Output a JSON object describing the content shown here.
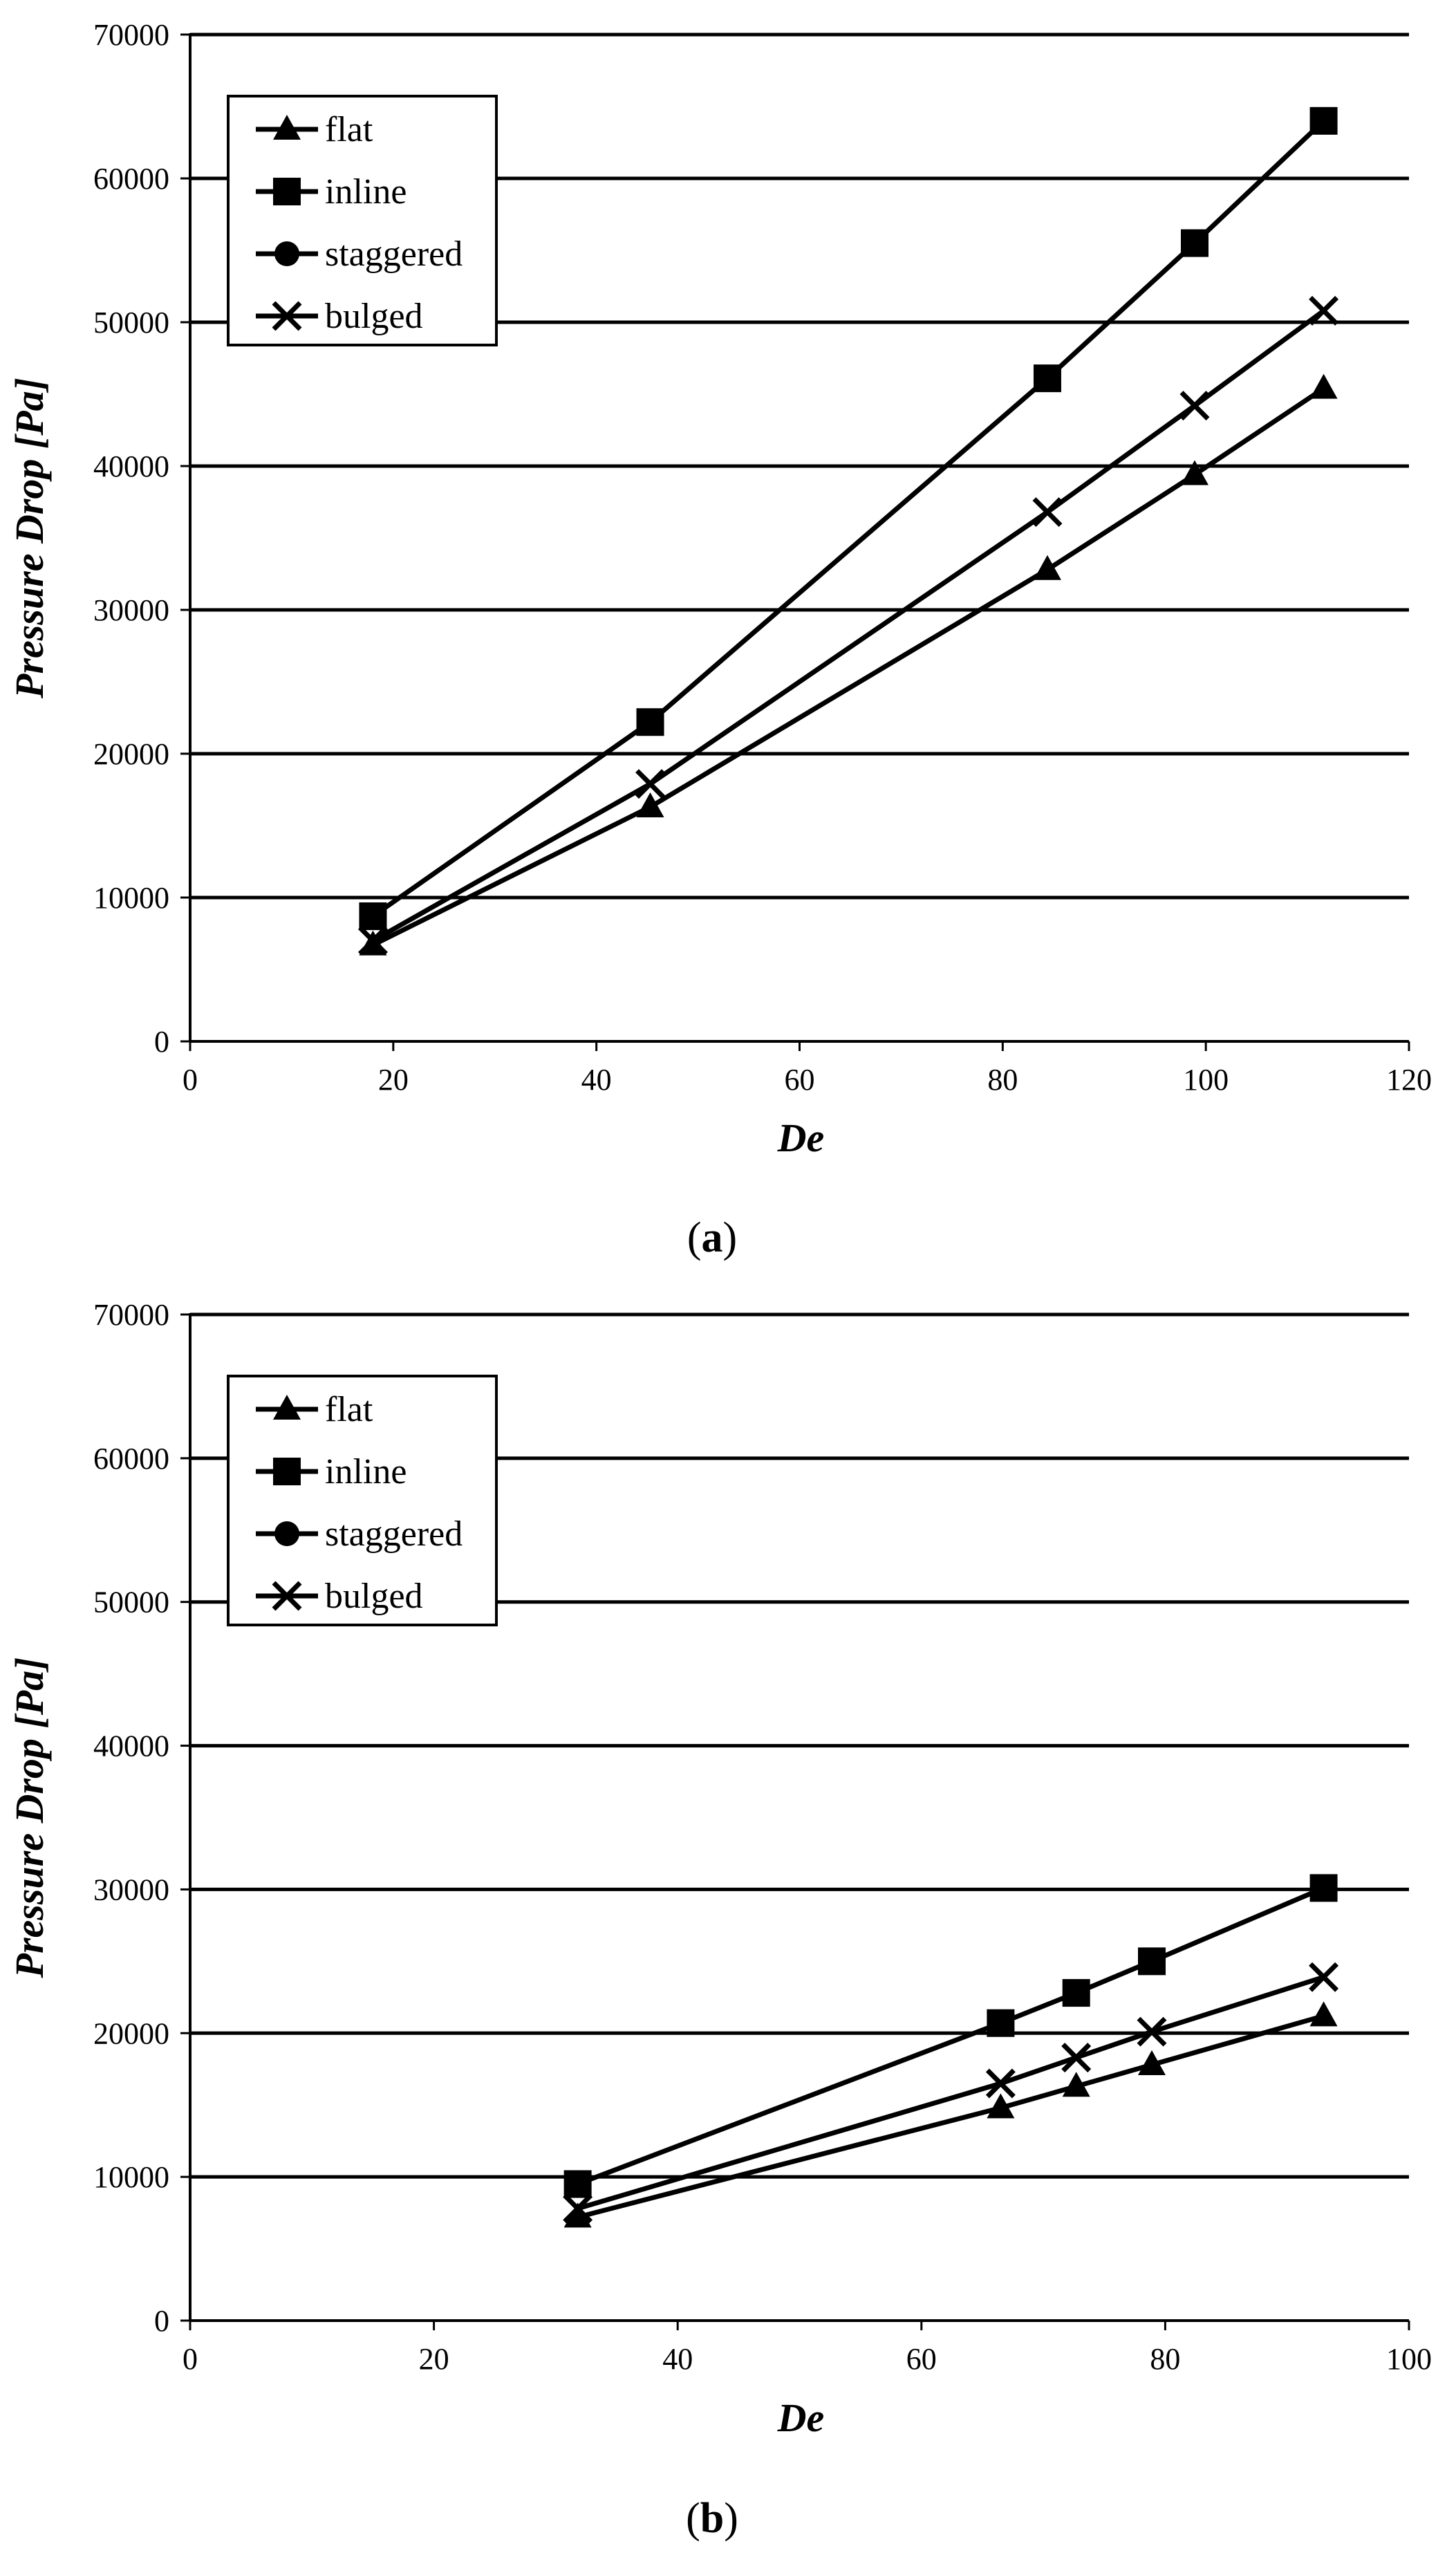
{
  "chart_data": [
    {
      "type": "line",
      "panel_label": "a",
      "xlabel": "De",
      "ylabel": "Pressure Drop [Pa]",
      "xlim": [
        0,
        120
      ],
      "ylim": [
        0,
        70000
      ],
      "x_ticks": [
        "0",
        "20",
        "40",
        "60",
        "80",
        "100",
        "120"
      ],
      "y_ticks": [
        "0",
        "10000",
        "20000",
        "30000",
        "40000",
        "50000",
        "60000",
        "70000"
      ],
      "grid": "horizontal",
      "legend_position": "top-left",
      "series": [
        {
          "name": "flat",
          "marker": "triangle",
          "x": [
            18,
            45.3,
            84.4,
            98.9,
            111.6
          ],
          "y": [
            6700,
            16300,
            32800,
            39400,
            45400
          ]
        },
        {
          "name": "inline",
          "marker": "square",
          "x": [
            18,
            45.3,
            84.4,
            98.9,
            111.6
          ],
          "y": [
            8700,
            22200,
            46100,
            55500,
            64000
          ]
        },
        {
          "name": "staggered",
          "marker": "circle",
          "x": [],
          "y": []
        },
        {
          "name": "bulged",
          "marker": "x",
          "x": [
            18,
            45.3,
            84.4,
            98.9,
            111.6
          ],
          "y": [
            7000,
            17900,
            36800,
            44200,
            50800
          ]
        }
      ]
    },
    {
      "type": "line",
      "panel_label": "b",
      "xlabel": "De",
      "ylabel": "Pressure Drop [Pa]",
      "xlim": [
        0,
        100
      ],
      "ylim": [
        0,
        70000
      ],
      "x_ticks": [
        "0",
        "20",
        "40",
        "60",
        "80",
        "100"
      ],
      "y_ticks": [
        "0",
        "10000",
        "20000",
        "30000",
        "40000",
        "50000",
        "60000",
        "70000"
      ],
      "grid": "horizontal",
      "legend_position": "top-left",
      "series": [
        {
          "name": "flat",
          "marker": "triangle",
          "x": [
            31.8,
            66.5,
            72.7,
            78.9,
            93
          ],
          "y": [
            7200,
            14800,
            16300,
            17800,
            21200
          ]
        },
        {
          "name": "inline",
          "marker": "square",
          "x": [
            31.8,
            66.5,
            72.7,
            78.9,
            93
          ],
          "y": [
            9500,
            20700,
            22800,
            25000,
            30100
          ]
        },
        {
          "name": "staggered",
          "marker": "circle",
          "x": [],
          "y": []
        },
        {
          "name": "bulged",
          "marker": "x",
          "x": [
            31.8,
            66.5,
            72.7,
            78.9,
            93
          ],
          "y": [
            7800,
            16500,
            18300,
            20100,
            23900
          ]
        }
      ]
    }
  ]
}
